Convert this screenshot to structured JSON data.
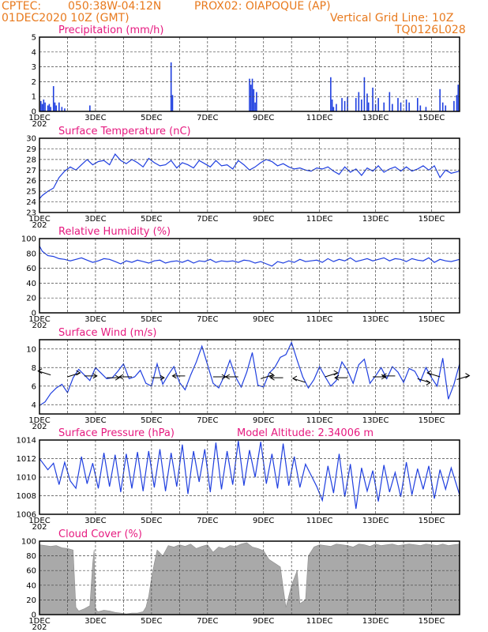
{
  "header": {
    "source": "CPTEC:",
    "coords": "050:38W-04:12N",
    "station": "PROX02: OIAPOQUE (AP)",
    "datetime": "01DEC2020 10Z (GMT)",
    "grid_note": "Vertical Grid Line: 10Z",
    "model_id": "TQ0126L028"
  },
  "colors": {
    "header": "#e87a1e",
    "title": "#e6197f",
    "series": "#1f3fe0",
    "cloud": "#a9a9a9"
  },
  "x_axis": {
    "start_day": 1,
    "end_day": 16,
    "tick_labels": [
      "1DEC",
      "3DEC",
      "5DEC",
      "7DEC",
      "9DEC",
      "11DEC",
      "13DEC",
      "15DEC"
    ],
    "tick_days": [
      1,
      3,
      5,
      7,
      9,
      11,
      13,
      15
    ],
    "year_stub": "202"
  },
  "chart_data": [
    {
      "type": "bar",
      "title": "Precipitation (mm/h)",
      "ylim": [
        0,
        5
      ],
      "yticks": [
        0,
        1,
        2,
        3,
        4,
        5
      ],
      "x": [
        1.05,
        1.1,
        1.15,
        1.2,
        1.3,
        1.35,
        1.4,
        1.5,
        1.55,
        1.6,
        1.7,
        1.8,
        1.9,
        2.8,
        5.7,
        5.75,
        8.5,
        8.55,
        8.6,
        8.65,
        8.7,
        8.75,
        11.4,
        11.45,
        11.5,
        11.6,
        11.8,
        11.9,
        12.0,
        12.3,
        12.4,
        12.5,
        12.6,
        12.7,
        12.75,
        12.9,
        13.0,
        13.1,
        13.3,
        13.5,
        13.6,
        13.8,
        13.9,
        14.1,
        14.2,
        14.5,
        14.6,
        14.8,
        15.3,
        15.4,
        15.5,
        15.8,
        15.9,
        15.95
      ],
      "values": [
        0.7,
        0.5,
        0.8,
        0.6,
        0.4,
        0.5,
        0.3,
        1.7,
        0.6,
        0.4,
        0.6,
        0.3,
        0.2,
        0.4,
        3.3,
        1.1,
        2.2,
        1.8,
        2.2,
        1.5,
        0.6,
        1.3,
        2.3,
        0.8,
        0.3,
        0.5,
        0.9,
        0.7,
        1.0,
        0.9,
        1.3,
        0.8,
        2.3,
        1.2,
        0.6,
        1.6,
        0.5,
        0.9,
        0.6,
        1.3,
        0.5,
        0.9,
        0.6,
        0.8,
        0.6,
        0.9,
        0.4,
        0.3,
        1.5,
        0.6,
        0.4,
        0.7,
        1.1,
        1.8
      ]
    },
    {
      "type": "line",
      "title": "Surface Temperature (nC)",
      "ylim": [
        23,
        30
      ],
      "yticks": [
        23,
        24,
        25,
        26,
        27,
        28,
        29,
        30
      ],
      "x": [
        1.0,
        1.1,
        1.3,
        1.5,
        1.7,
        1.9,
        2.1,
        2.3,
        2.5,
        2.7,
        2.9,
        3.1,
        3.3,
        3.5,
        3.7,
        3.9,
        4.1,
        4.3,
        4.5,
        4.7,
        4.9,
        5.1,
        5.3,
        5.5,
        5.7,
        5.9,
        6.1,
        6.3,
        6.5,
        6.7,
        6.9,
        7.1,
        7.3,
        7.5,
        7.7,
        7.9,
        8.1,
        8.3,
        8.5,
        8.7,
        8.9,
        9.1,
        9.3,
        9.5,
        9.7,
        9.9,
        10.1,
        10.3,
        10.5,
        10.7,
        10.9,
        11.1,
        11.3,
        11.5,
        11.7,
        11.9,
        12.1,
        12.3,
        12.5,
        12.7,
        12.9,
        13.1,
        13.3,
        13.5,
        13.7,
        13.9,
        14.1,
        14.3,
        14.5,
        14.7,
        14.9,
        15.1,
        15.3,
        15.5,
        15.7,
        16.0
      ],
      "values": [
        24.3,
        24.6,
        25.0,
        25.3,
        26.3,
        26.9,
        27.3,
        27.0,
        27.5,
        28.0,
        27.5,
        27.8,
        27.9,
        27.5,
        28.5,
        27.9,
        27.6,
        28.0,
        27.7,
        27.3,
        28.1,
        27.7,
        27.4,
        27.5,
        27.9,
        27.2,
        27.7,
        27.5,
        27.2,
        27.9,
        27.6,
        27.3,
        27.9,
        27.4,
        27.5,
        27.1,
        27.9,
        27.5,
        27.0,
        27.3,
        27.7,
        28.0,
        27.8,
        27.4,
        27.6,
        27.3,
        27.1,
        27.2,
        27.0,
        26.9,
        27.2,
        27.1,
        27.3,
        26.9,
        26.6,
        27.3,
        26.8,
        27.1,
        26.5,
        27.2,
        26.9,
        27.4,
        26.8,
        27.1,
        27.3,
        26.9,
        27.3,
        26.9,
        27.1,
        27.4,
        27.0,
        27.4,
        26.3,
        27.0,
        26.7,
        26.9
      ]
    },
    {
      "type": "line",
      "title": "Relative Humidity (%)",
      "ylim": [
        0,
        100
      ],
      "yticks": [
        0,
        20,
        40,
        60,
        80,
        100
      ],
      "x": [
        1.0,
        1.1,
        1.3,
        1.5,
        1.7,
        1.9,
        2.1,
        2.3,
        2.5,
        2.7,
        2.9,
        3.1,
        3.3,
        3.5,
        3.7,
        3.9,
        4.1,
        4.3,
        4.5,
        4.7,
        4.9,
        5.1,
        5.3,
        5.5,
        5.7,
        5.9,
        6.1,
        6.3,
        6.5,
        6.7,
        6.9,
        7.1,
        7.3,
        7.5,
        7.7,
        7.9,
        8.1,
        8.3,
        8.5,
        8.7,
        8.9,
        9.1,
        9.3,
        9.5,
        9.7,
        9.9,
        10.1,
        10.3,
        10.5,
        10.7,
        10.9,
        11.1,
        11.3,
        11.5,
        11.7,
        11.9,
        12.1,
        12.3,
        12.5,
        12.7,
        12.9,
        13.1,
        13.3,
        13.5,
        13.7,
        13.9,
        14.1,
        14.3,
        14.5,
        14.7,
        14.9,
        15.1,
        15.3,
        15.5,
        15.7,
        16.0
      ],
      "values": [
        90,
        83,
        77,
        76,
        73,
        72,
        70,
        72,
        74,
        71,
        68,
        70,
        73,
        72,
        69,
        66,
        70,
        68,
        71,
        69,
        67,
        70,
        71,
        67,
        69,
        70,
        68,
        71,
        67,
        70,
        69,
        72,
        68,
        70,
        69,
        70,
        68,
        71,
        70,
        67,
        69,
        66,
        63,
        69,
        67,
        70,
        68,
        72,
        69,
        70,
        71,
        68,
        73,
        69,
        72,
        70,
        74,
        69,
        71,
        73,
        70,
        72,
        74,
        70,
        73,
        72,
        69,
        73,
        71,
        70,
        74,
        68,
        72,
        70,
        69,
        72
      ]
    },
    {
      "type": "line",
      "title": "Surface Wind (m/s)",
      "ylim": [
        3,
        11
      ],
      "yticks": [
        4,
        6,
        8,
        10
      ],
      "x": [
        1.0,
        1.2,
        1.4,
        1.6,
        1.8,
        2.0,
        2.2,
        2.4,
        2.6,
        2.8,
        3.0,
        3.2,
        3.4,
        3.6,
        3.8,
        4.0,
        4.2,
        4.4,
        4.6,
        4.8,
        5.0,
        5.2,
        5.4,
        5.6,
        5.8,
        6.0,
        6.2,
        6.4,
        6.6,
        6.8,
        7.0,
        7.2,
        7.4,
        7.6,
        7.8,
        8.0,
        8.2,
        8.4,
        8.6,
        8.8,
        9.0,
        9.2,
        9.4,
        9.6,
        9.8,
        10.0,
        10.2,
        10.4,
        10.6,
        10.8,
        11.0,
        11.2,
        11.4,
        11.6,
        11.8,
        12.0,
        12.2,
        12.4,
        12.6,
        12.8,
        13.0,
        13.2,
        13.4,
        13.6,
        13.8,
        14.0,
        14.2,
        14.4,
        14.6,
        14.8,
        15.0,
        15.2,
        15.4,
        15.6,
        15.8,
        16.0
      ],
      "values": [
        3.9,
        4.3,
        5.2,
        5.8,
        6.2,
        5.3,
        6.9,
        7.8,
        7.2,
        6.6,
        8.0,
        7.4,
        6.8,
        6.9,
        7.6,
        8.4,
        6.8,
        7.0,
        7.7,
        6.3,
        6.0,
        8.4,
        6.2,
        7.2,
        8.1,
        6.4,
        5.6,
        7.2,
        8.6,
        10.3,
        8.3,
        6.3,
        5.8,
        7.1,
        8.8,
        7.0,
        5.9,
        7.5,
        9.6,
        6.1,
        5.9,
        7.4,
        8.0,
        9.1,
        9.4,
        10.7,
        8.8,
        7.0,
        5.8,
        6.7,
        8.1,
        7.0,
        6.0,
        6.6,
        8.6,
        7.7,
        6.3,
        8.3,
        8.9,
        6.3,
        7.1,
        8.0,
        6.8,
        8.1,
        7.5,
        6.4,
        7.9,
        7.6,
        6.5,
        8.0,
        6.9,
        6.0,
        9.0,
        4.6,
        6.2,
        8.4
      ]
    },
    {
      "type": "line",
      "title": "Surface Pressure (hPa)",
      "annotation": "Model Altitude: 2.34006 m",
      "ylim": [
        1006,
        1014
      ],
      "yticks": [
        1006,
        1008,
        1010,
        1012,
        1014
      ],
      "x": [
        1.0,
        1.1,
        1.3,
        1.5,
        1.7,
        1.9,
        2.1,
        2.3,
        2.5,
        2.7,
        2.9,
        3.1,
        3.3,
        3.5,
        3.7,
        3.9,
        4.1,
        4.3,
        4.5,
        4.7,
        4.9,
        5.1,
        5.3,
        5.5,
        5.7,
        5.9,
        6.1,
        6.3,
        6.5,
        6.7,
        6.9,
        7.1,
        7.3,
        7.5,
        7.7,
        7.9,
        8.1,
        8.3,
        8.5,
        8.7,
        8.9,
        9.1,
        9.3,
        9.5,
        9.7,
        9.9,
        10.1,
        10.3,
        10.5,
        10.7,
        10.9,
        11.1,
        11.3,
        11.5,
        11.7,
        11.9,
        12.1,
        12.3,
        12.5,
        12.7,
        12.9,
        13.1,
        13.3,
        13.5,
        13.7,
        13.9,
        14.1,
        14.3,
        14.5,
        14.7,
        14.9,
        15.1,
        15.3,
        15.5,
        15.7,
        16.0
      ],
      "values": [
        1012.0,
        1011.6,
        1010.8,
        1011.5,
        1009.2,
        1011.6,
        1009.6,
        1008.8,
        1012.2,
        1009.3,
        1011.5,
        1008.8,
        1012.6,
        1009.0,
        1012.4,
        1008.4,
        1012.5,
        1008.8,
        1012.7,
        1008.5,
        1012.8,
        1008.9,
        1013.0,
        1008.5,
        1012.6,
        1009.0,
        1013.5,
        1008.2,
        1012.8,
        1009.5,
        1013.0,
        1008.4,
        1013.7,
        1008.7,
        1012.8,
        1009.2,
        1013.9,
        1009.1,
        1012.9,
        1010.0,
        1013.8,
        1009.3,
        1012.5,
        1008.8,
        1013.6,
        1009.1,
        1012.2,
        1008.9,
        1011.4,
        1010.2,
        1009.0,
        1007.5,
        1011.2,
        1008.3,
        1012.5,
        1007.9,
        1011.4,
        1006.6,
        1011.0,
        1008.5,
        1010.7,
        1007.4,
        1011.3,
        1008.4,
        1010.5,
        1007.9,
        1011.6,
        1008.1,
        1010.9,
        1008.7,
        1011.2,
        1007.7,
        1010.8,
        1008.7,
        1011.0,
        1008.1
      ]
    },
    {
      "type": "area",
      "title": "Cloud Cover (%)",
      "ylim": [
        0,
        100
      ],
      "yticks": [
        0,
        20,
        40,
        60,
        80,
        100
      ],
      "x": [
        1.0,
        1.2,
        1.4,
        1.6,
        1.8,
        2.0,
        2.2,
        2.3,
        2.4,
        2.6,
        2.8,
        2.9,
        2.95,
        3.0,
        3.05,
        3.1,
        3.3,
        3.5,
        3.7,
        3.9,
        4.1,
        4.3,
        4.5,
        4.7,
        4.8,
        4.9,
        5.0,
        5.1,
        5.2,
        5.4,
        5.6,
        5.8,
        6.0,
        6.2,
        6.4,
        6.6,
        6.8,
        7.0,
        7.2,
        7.4,
        7.6,
        7.8,
        8.0,
        8.2,
        8.4,
        8.6,
        8.8,
        9.0,
        9.2,
        9.4,
        9.6,
        9.8,
        10.0,
        10.2,
        10.3,
        10.5,
        10.6,
        10.8,
        11.0,
        11.2,
        11.4,
        11.6,
        11.8,
        12.0,
        12.2,
        12.4,
        12.6,
        12.8,
        13.0,
        13.2,
        13.4,
        13.6,
        13.8,
        14.0,
        14.2,
        14.4,
        14.6,
        14.8,
        15.0,
        15.2,
        15.4,
        15.6,
        15.8,
        16.0
      ],
      "values": [
        95,
        94,
        93,
        94,
        91,
        90,
        88,
        10,
        5,
        8,
        12,
        70,
        88,
        10,
        5,
        4,
        6,
        5,
        3,
        2,
        1,
        2,
        2,
        4,
        10,
        25,
        50,
        70,
        88,
        80,
        94,
        92,
        95,
        93,
        96,
        90,
        93,
        95,
        85,
        92,
        90,
        94,
        93,
        96,
        98,
        92,
        90,
        87,
        75,
        70,
        65,
        10,
        40,
        60,
        15,
        20,
        80,
        92,
        95,
        94,
        93,
        96,
        95,
        94,
        92,
        96,
        95,
        93,
        96,
        94,
        95,
        96,
        94,
        95,
        96,
        95,
        94,
        96,
        95,
        94,
        96,
        94,
        95,
        96
      ]
    }
  ]
}
